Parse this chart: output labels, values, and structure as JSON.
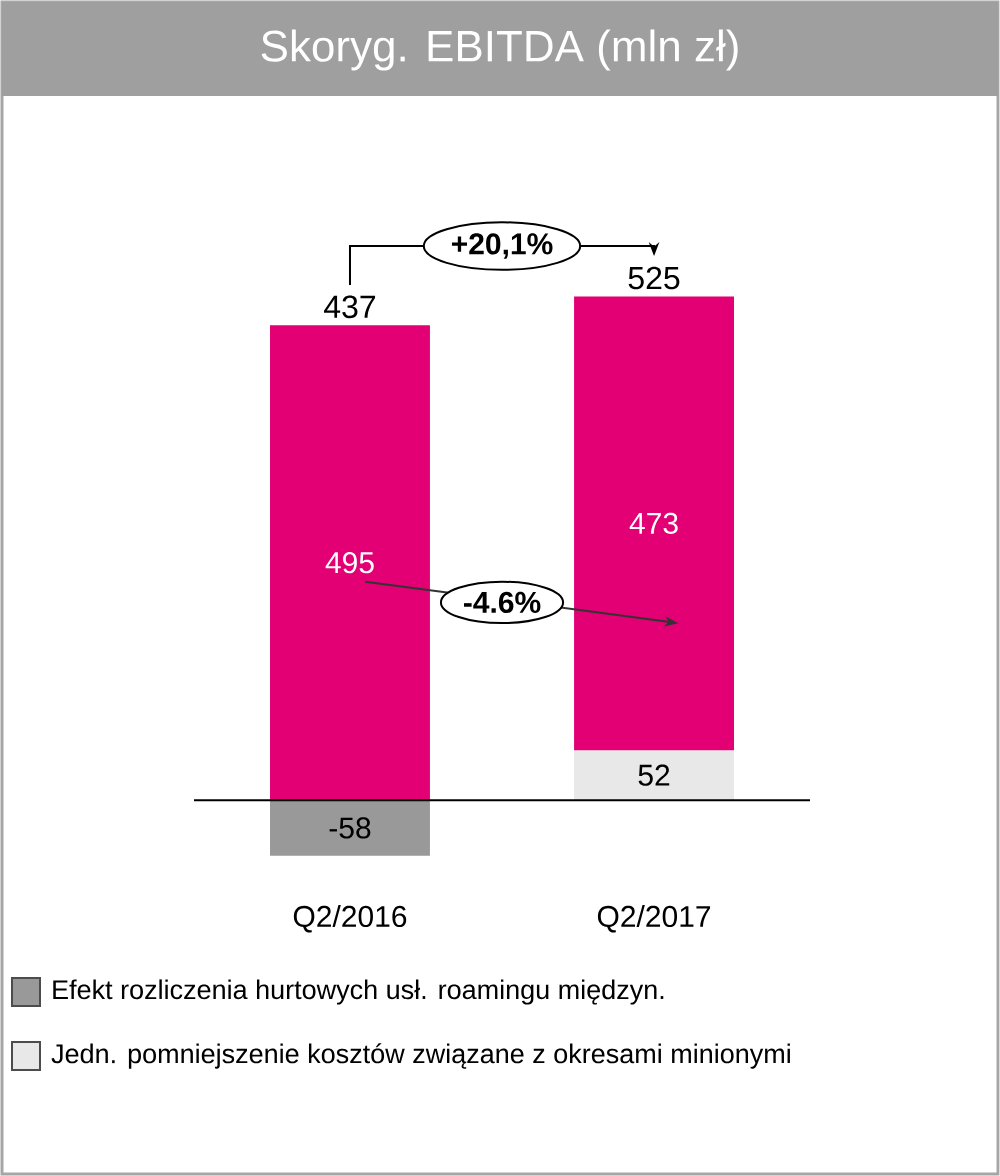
{
  "chart_data": {
    "type": "bar",
    "title": "Skoryg. EBITDA (mln zł)",
    "categories": [
      "Q2/2016",
      "Q2/2017"
    ],
    "stacked": true,
    "data_labels": true,
    "legend": "bottom",
    "series": [
      {
        "name": "Efekt rozliczenia hurtowych usł. roamingu międzyn.",
        "color": "#999999",
        "values": [
          -58,
          null
        ]
      },
      {
        "name": "Jedn. pomniejszenie kosztów związane z okresami minionymi",
        "color": "#e8e8e8",
        "values": [
          null,
          52
        ]
      },
      {
        "color": "#e20074",
        "values": [
          495,
          473
        ]
      }
    ],
    "totals": [
      "437",
      "525"
    ],
    "annotations": [
      "+20,1%",
      "-4.6%"
    ]
  }
}
